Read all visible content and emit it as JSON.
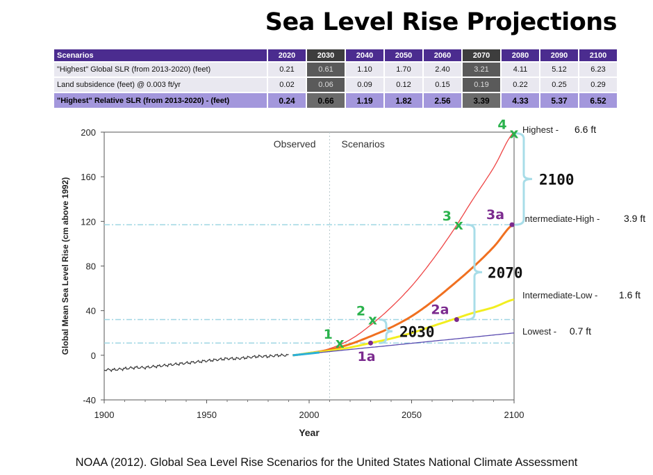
{
  "title": "Sea Level Rise Projections",
  "table": {
    "header_label": "Scenarios",
    "years": [
      "2020",
      "2030",
      "2040",
      "2050",
      "2060",
      "2070",
      "2080",
      "2090",
      "2100"
    ],
    "rows": [
      {
        "label": "\"Highest\" Global SLR (from 2013-2020) (feet)",
        "values": [
          "0.21",
          "0.61",
          "1.10",
          "1.70",
          "2.40",
          "3.21",
          "4.11",
          "5.12",
          "6.23"
        ]
      },
      {
        "label": "Land subsidence (feet) @ 0.003 ft/yr",
        "values": [
          "0.02",
          "0.06",
          "0.09",
          "0.12",
          "0.15",
          "0.19",
          "0.22",
          "0.25",
          "0.29"
        ]
      },
      {
        "label": "\"Highest\" Relative SLR (from 2013-2020) - (feet)",
        "values": [
          "0.24",
          "0.66",
          "1.19",
          "1.82",
          "2.56",
          "3.39",
          "4.33",
          "5.37",
          "6.52"
        ]
      }
    ]
  },
  "chart_data": {
    "type": "line",
    "xlabel": "Year",
    "ylabel": "Global Mean Sea Level Rise (cm above 1992)",
    "xlim": [
      1900,
      2100
    ],
    "ylim": [
      -40,
      200
    ],
    "x_ticks": [
      "1900",
      "1950",
      "2000",
      "2050",
      "2100"
    ],
    "y_ticks": [
      "200",
      "160",
      "120",
      "80",
      "40",
      "0",
      "-40"
    ],
    "divider_year": 2010,
    "region_labels": {
      "observed": "Observed",
      "scenarios": "Scenarios"
    },
    "observed_series": {
      "name": "Observed",
      "color": "#333333",
      "x": [
        1900,
        1905,
        1910,
        1915,
        1920,
        1925,
        1930,
        1935,
        1940,
        1945,
        1950,
        1955,
        1960,
        1965,
        1970,
        1975,
        1980,
        1985,
        1990
      ],
      "y": [
        -13,
        -13,
        -12,
        -11,
        -11,
        -10,
        -9,
        -8,
        -7,
        -6,
        -5,
        -4,
        -3,
        -3,
        -2,
        -1,
        -1,
        0,
        0
      ]
    },
    "series": [
      {
        "name": "Highest",
        "label_value": "6.6 ft",
        "color": "#ee4444",
        "x": [
          1992,
          2000,
          2010,
          2020,
          2030,
          2040,
          2050,
          2060,
          2070,
          2080,
          2090,
          2100
        ],
        "y": [
          0,
          2,
          6,
          14,
          27,
          43,
          62,
          85,
          111,
          140,
          168,
          200
        ]
      },
      {
        "name": "Intermediate-High",
        "label_value": "3.9 ft",
        "color": "#f07020",
        "x": [
          1992,
          2000,
          2010,
          2020,
          2030,
          2040,
          2050,
          2060,
          2070,
          2080,
          2090,
          2100
        ],
        "y": [
          0,
          2,
          5,
          10,
          17,
          25,
          35,
          48,
          63,
          79,
          97,
          118
        ]
      },
      {
        "name": "Intermediate-Low",
        "label_value": "1.6 ft",
        "color": "#f2ee20",
        "x": [
          1992,
          2000,
          2010,
          2020,
          2030,
          2040,
          2050,
          2060,
          2070,
          2080,
          2090,
          2100
        ],
        "y": [
          0,
          2,
          4,
          7,
          11,
          15,
          20,
          26,
          32,
          38,
          43,
          50
        ]
      },
      {
        "name": "Lowest",
        "label_value": "0.7 ft",
        "color": "#5a4bb0",
        "x": [
          1992,
          2100
        ],
        "y": [
          0,
          20
        ]
      }
    ],
    "highlight_segment": {
      "color": "#2ab0d8",
      "x": [
        1992,
        2005
      ]
    },
    "reference_lines": [
      11,
      32,
      117
    ],
    "markers": [
      {
        "label": "1",
        "x": 2015,
        "y": 11,
        "kind": "x"
      },
      {
        "label": "2",
        "x": 2031,
        "y": 32,
        "kind": "x"
      },
      {
        "label": "3",
        "x": 2073,
        "y": 117,
        "kind": "x"
      },
      {
        "label": "4",
        "x": 2100,
        "y": 199,
        "kind": "x"
      },
      {
        "label": "1a",
        "x": 2030,
        "y": 11,
        "kind": "dot"
      },
      {
        "label": "2a",
        "x": 2072,
        "y": 32,
        "kind": "dot"
      },
      {
        "label": "3a",
        "x": 2099,
        "y": 117,
        "kind": "dot"
      }
    ],
    "braces": [
      {
        "label": "2030",
        "from_y": 11,
        "to_y": 32
      },
      {
        "label": "2070",
        "from_y": 32,
        "to_y": 117
      },
      {
        "label": "2100",
        "from_y": 117,
        "to_y": 199
      }
    ],
    "colors": {
      "marker_green": "#2ab24c",
      "marker_purple": "#7b2a8e",
      "brace": "#a8dde8",
      "reference": "#9fd6e3"
    }
  },
  "caption": "NOAA (2012). Global Sea Level Rise Scenarios for the United States National Climate Assessment"
}
